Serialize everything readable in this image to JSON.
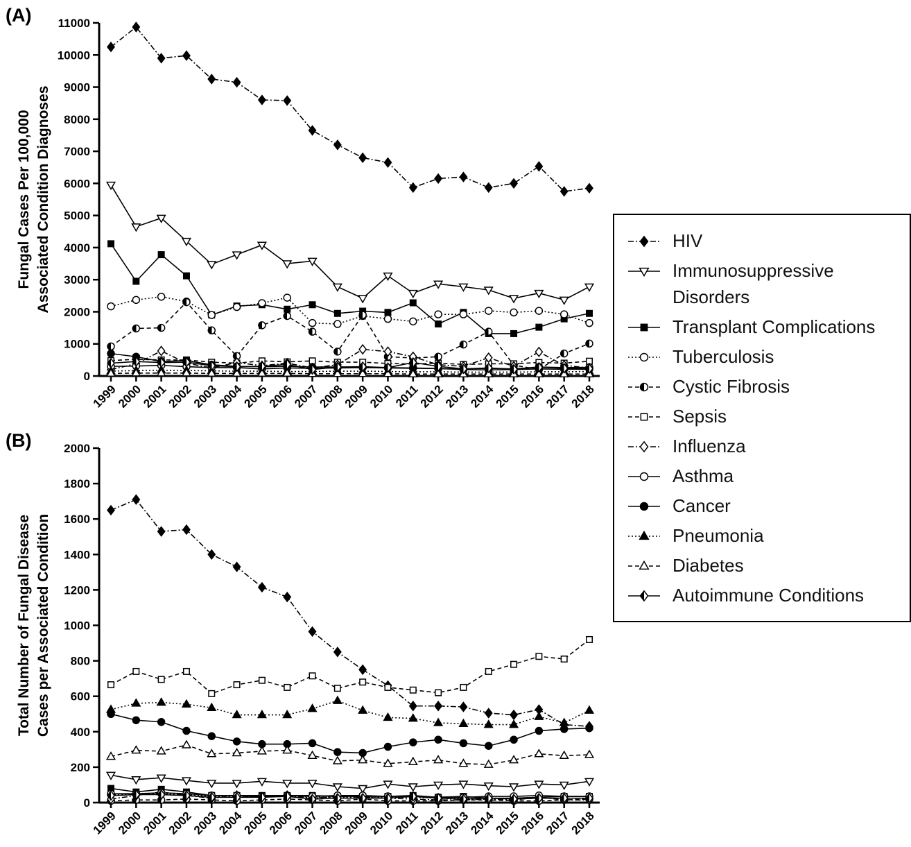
{
  "chart_data": [
    {
      "type": "line",
      "title": "(A)",
      "ylabel": [
        "Fungal Cases Per 100,000",
        "Associated Condition Diagnoses"
      ],
      "color": "#000000",
      "categories": [
        "1999",
        "2000",
        "2001",
        "2002",
        "2003",
        "2004",
        "2005",
        "2006",
        "2007",
        "2008",
        "2009",
        "2010",
        "2011",
        "2012",
        "2013",
        "2014",
        "2015",
        "2016",
        "2017",
        "2018"
      ],
      "ylim": [
        0,
        11000
      ],
      "yticks": [
        0,
        1000,
        2000,
        3000,
        4000,
        5000,
        6000,
        7000,
        8000,
        9000,
        10000,
        11000
      ],
      "series": [
        {
          "name": "HIV",
          "marker": "diamond-filled",
          "line_style": "dashdot",
          "values": [
            10250,
            10870,
            9900,
            9980,
            9250,
            9150,
            8600,
            8580,
            7650,
            7200,
            6800,
            6650,
            5870,
            6150,
            6200,
            5870,
            6000,
            6530,
            5750,
            5850
          ]
        },
        {
          "name": "Immunosuppressive Disorders",
          "marker": "triangle-down-open",
          "line_style": "solid",
          "values": [
            5950,
            4650,
            4920,
            4200,
            3480,
            3780,
            4080,
            3500,
            3580,
            2780,
            2420,
            3120,
            2580,
            2870,
            2780,
            2680,
            2420,
            2580,
            2370,
            2780
          ]
        },
        {
          "name": "Transplant Complications",
          "marker": "square-filled",
          "line_style": "solid",
          "values": [
            4120,
            2950,
            3780,
            3120,
            1900,
            2180,
            2220,
            2080,
            2220,
            1950,
            2020,
            1980,
            2280,
            1620,
            1980,
            1320,
            1320,
            1520,
            1780,
            1950
          ]
        },
        {
          "name": "Tuberculosis",
          "marker": "circle-open",
          "line_style": "dotted",
          "values": [
            2170,
            2370,
            2470,
            2320,
            1900,
            2150,
            2270,
            2440,
            1650,
            1620,
            1870,
            1780,
            1700,
            1920,
            1920,
            2030,
            1980,
            2030,
            1920,
            1650
          ]
        },
        {
          "name": "Cystic Fibrosis",
          "marker": "circle-half",
          "line_style": "dashed",
          "values": [
            920,
            1480,
            1500,
            2300,
            1420,
            620,
            1580,
            1870,
            1380,
            760,
            1900,
            600,
            560,
            600,
            980,
            1380,
            340,
            200,
            700,
            1010
          ]
        },
        {
          "name": "Sepsis",
          "marker": "square-open",
          "line_style": "dashed",
          "values": [
            480,
            520,
            500,
            500,
            430,
            400,
            470,
            440,
            470,
            430,
            430,
            390,
            370,
            400,
            360,
            380,
            380,
            420,
            400,
            460
          ]
        },
        {
          "name": "Influenza",
          "marker": "diamond-open",
          "line_style": "dashdot",
          "values": [
            200,
            380,
            780,
            400,
            250,
            420,
            320,
            400,
            250,
            350,
            830,
            760,
            600,
            350,
            300,
            570,
            300,
            750,
            330,
            250
          ]
        },
        {
          "name": "Asthma",
          "marker": "circle-open",
          "line_style": "solid",
          "values": [
            300,
            310,
            330,
            290,
            260,
            260,
            220,
            250,
            240,
            250,
            260,
            250,
            240,
            230,
            220,
            240,
            220,
            280,
            260,
            270
          ]
        },
        {
          "name": "Cancer",
          "marker": "circle-filled",
          "line_style": "solid",
          "values": [
            700,
            600,
            450,
            480,
            350,
            300,
            290,
            300,
            280,
            280,
            270,
            260,
            250,
            230,
            200,
            190,
            200,
            220,
            210,
            210
          ]
        },
        {
          "name": "Pneumonia",
          "marker": "triangle-up-filled",
          "line_style": "dotted",
          "values": [
            150,
            170,
            180,
            170,
            160,
            150,
            150,
            140,
            140,
            150,
            150,
            140,
            130,
            130,
            120,
            120,
            120,
            130,
            130,
            140
          ]
        },
        {
          "name": "Diabetes",
          "marker": "triangle-up-open",
          "line_style": "dashed",
          "values": [
            80,
            90,
            90,
            90,
            80,
            80,
            80,
            80,
            70,
            70,
            70,
            70,
            60,
            60,
            60,
            60,
            60,
            60,
            60,
            60
          ]
        },
        {
          "name": "Autoimmune Conditions",
          "marker": "diamond-half",
          "line_style": "solid",
          "values": [
            400,
            450,
            420,
            430,
            320,
            290,
            300,
            360,
            200,
            280,
            290,
            260,
            420,
            300,
            220,
            250,
            210,
            270,
            240,
            230
          ]
        }
      ]
    },
    {
      "type": "line",
      "title": "(B)",
      "ylabel": [
        "Total Number of Fungal Disease",
        "Cases per Associated Condition"
      ],
      "color": "#000000",
      "categories": [
        "1999",
        "2000",
        "2001",
        "2002",
        "2003",
        "2004",
        "2005",
        "2006",
        "2007",
        "2008",
        "2009",
        "2010",
        "2011",
        "2012",
        "2013",
        "2014",
        "2015",
        "2016",
        "2017",
        "2018"
      ],
      "ylim": [
        0,
        2000
      ],
      "yticks": [
        0,
        200,
        400,
        600,
        800,
        1000,
        1200,
        1400,
        1600,
        1800,
        2000
      ],
      "series": [
        {
          "values": [
            1650,
            1710,
            1530,
            1540,
            1400,
            1330,
            1215,
            1160,
            965,
            850,
            750,
            660,
            545,
            545,
            540,
            505,
            495,
            525,
            440,
            430
          ]
        },
        {
          "values": [
            155,
            130,
            140,
            125,
            110,
            110,
            120,
            110,
            110,
            90,
            80,
            105,
            90,
            100,
            105,
            95,
            90,
            105,
            100,
            120
          ]
        },
        {
          "values": [
            80,
            60,
            75,
            60,
            40,
            40,
            40,
            40,
            40,
            35,
            35,
            35,
            40,
            30,
            35,
            25,
            25,
            30,
            35,
            35
          ]
        },
        {
          "values": [
            45,
            50,
            50,
            45,
            35,
            35,
            35,
            40,
            30,
            30,
            30,
            30,
            30,
            25,
            25,
            25,
            25,
            25,
            25,
            25
          ]
        },
        {
          "values": [
            10,
            15,
            15,
            20,
            15,
            10,
            15,
            20,
            15,
            10,
            20,
            10,
            10,
            10,
            15,
            15,
            10,
            10,
            15,
            20
          ]
        },
        {
          "values": [
            665,
            740,
            695,
            740,
            615,
            665,
            690,
            650,
            715,
            645,
            680,
            650,
            635,
            620,
            650,
            740,
            780,
            825,
            810,
            920
          ]
        },
        {
          "values": [
            20,
            40,
            60,
            40,
            25,
            40,
            30,
            40,
            25,
            35,
            30,
            25,
            20,
            15,
            15,
            20,
            15,
            30,
            15,
            15
          ]
        },
        {
          "values": [
            50,
            50,
            55,
            50,
            40,
            40,
            35,
            40,
            35,
            40,
            40,
            35,
            35,
            30,
            30,
            35,
            35,
            40,
            35,
            35
          ]
        },
        {
          "values": [
            500,
            465,
            455,
            405,
            375,
            345,
            330,
            330,
            335,
            285,
            280,
            315,
            340,
            355,
            335,
            320,
            355,
            405,
            415,
            420
          ]
        },
        {
          "values": [
            525,
            560,
            565,
            555,
            535,
            495,
            495,
            495,
            530,
            575,
            520,
            480,
            475,
            450,
            445,
            440,
            440,
            485,
            450,
            520
          ]
        },
        {
          "values": [
            260,
            295,
            290,
            325,
            275,
            280,
            290,
            295,
            265,
            235,
            240,
            220,
            230,
            240,
            220,
            215,
            240,
            275,
            265,
            270
          ]
        },
        {
          "values": [
            40,
            45,
            45,
            40,
            30,
            30,
            30,
            35,
            20,
            25,
            25,
            25,
            35,
            25,
            20,
            25,
            20,
            25,
            25,
            25
          ]
        }
      ]
    }
  ]
}
